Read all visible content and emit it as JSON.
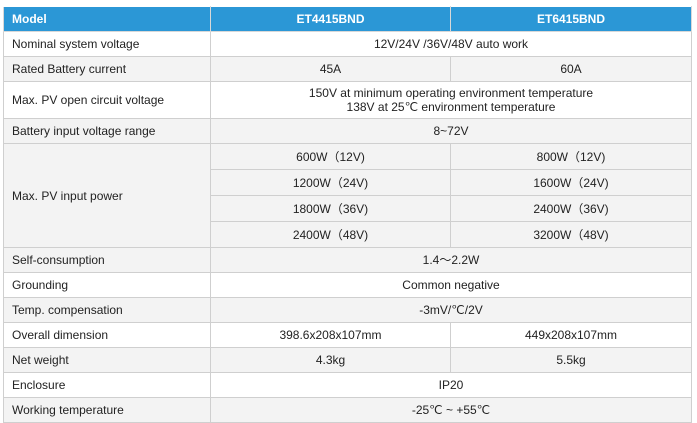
{
  "table": {
    "headers": [
      "Model",
      "ET4415BND",
      "ET6415BND"
    ],
    "rows": [
      {
        "label": "Nominal system voltage",
        "span": "12V/24V /36V/48V auto work"
      },
      {
        "label": "Rated Battery current",
        "v1": "45A",
        "v2": "60A"
      },
      {
        "label": "Max. PV open circuit voltage",
        "line1": "150V at minimum operating environment temperature",
        "line2": "138V at 25℃ environment temperature"
      },
      {
        "label": "Battery input voltage range",
        "span": "8~72V"
      },
      {
        "label": "Max. PV input power",
        "power": [
          {
            "v1": "600W（12V)",
            "v2": "800W（12V)"
          },
          {
            "v1": "1200W（24V)",
            "v2": "1600W（24V)"
          },
          {
            "v1": "1800W（36V)",
            "v2": "2400W（36V)"
          },
          {
            "v1": "2400W（48V)",
            "v2": "3200W（48V)"
          }
        ]
      },
      {
        "label": "Self-consumption",
        "span": "1.4～2.2W"
      },
      {
        "label": "Grounding",
        "span": "Common negative"
      },
      {
        "label": "Temp. compensation",
        "span": "-3mV/℃/2V"
      },
      {
        "label": "Overall dimension",
        "v1": "398.6x208x107mm",
        "v2": "449x208x107mm"
      },
      {
        "label": "Net weight",
        "v1": "4.3kg",
        "v2": "5.5kg"
      },
      {
        "label": "Enclosure",
        "span": "IP20"
      },
      {
        "label": "Working temperature",
        "span": "-25℃ ~ +55℃"
      }
    ]
  },
  "colors": {
    "header_bg": "#2b97d6",
    "stripe_bg": "#f3f3f3",
    "border": "#cfcfcf"
  }
}
